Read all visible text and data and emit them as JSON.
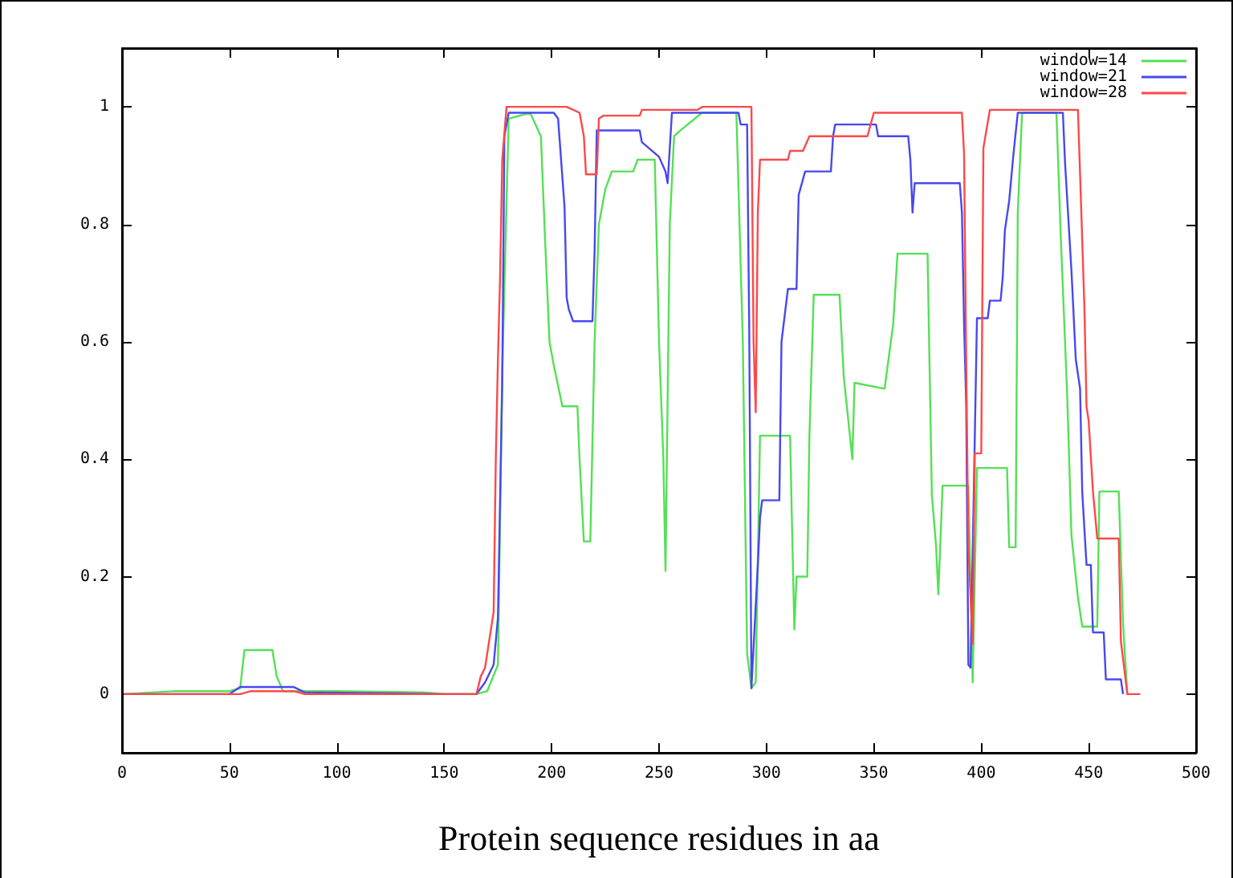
{
  "chart_data": {
    "type": "line",
    "xlabel": "Protein sequence residues in aa",
    "xlim": [
      0,
      500
    ],
    "xticks": [
      0,
      50,
      100,
      150,
      200,
      250,
      300,
      350,
      400,
      450,
      500
    ],
    "ylim": [
      -0.1,
      1.1
    ],
    "yticks": [
      0,
      0.2,
      0.4,
      0.6,
      0.8,
      1
    ],
    "grid": false,
    "legend": "top right",
    "marker": "none",
    "line_style": "solid",
    "series": [
      {
        "name": "window=14",
        "color": "#55e055",
        "x": [
          1,
          25,
          50,
          55,
          57,
          70,
          72,
          75,
          100,
          140,
          150,
          165,
          170,
          175,
          177,
          180,
          190,
          195,
          197,
          199,
          201,
          205,
          212,
          213,
          215,
          218,
          220,
          222,
          225,
          228,
          238,
          240,
          248,
          250,
          252,
          253,
          255,
          257,
          260,
          270,
          286,
          289,
          291,
          293,
          295,
          297,
          311,
          312,
          313,
          314,
          319,
          320,
          322,
          334,
          336,
          340,
          341,
          355,
          359,
          361,
          375,
          377,
          379,
          380,
          382,
          394,
          396,
          398,
          412,
          413,
          416,
          417,
          419,
          435,
          437,
          440,
          442,
          445,
          447,
          454,
          455,
          464,
          466,
          468
        ],
        "values": [
          0,
          0.005,
          0.005,
          0.01,
          0.075,
          0.075,
          0.03,
          0.005,
          0.005,
          0.003,
          0,
          0,
          0.005,
          0.05,
          0.55,
          0.98,
          0.99,
          0.95,
          0.77,
          0.6,
          0.56,
          0.49,
          0.49,
          0.4,
          0.26,
          0.26,
          0.6,
          0.8,
          0.86,
          0.89,
          0.89,
          0.91,
          0.91,
          0.6,
          0.4,
          0.21,
          0.8,
          0.95,
          0.96,
          0.99,
          0.99,
          0.6,
          0.07,
          0.01,
          0.02,
          0.44,
          0.44,
          0.27,
          0.11,
          0.2,
          0.2,
          0.44,
          0.68,
          0.68,
          0.54,
          0.4,
          0.53,
          0.52,
          0.63,
          0.75,
          0.75,
          0.34,
          0.25,
          0.17,
          0.355,
          0.355,
          0.02,
          0.385,
          0.385,
          0.25,
          0.25,
          0.82,
          0.99,
          0.99,
          0.78,
          0.51,
          0.27,
          0.165,
          0.115,
          0.115,
          0.345,
          0.345,
          0.12,
          0
        ]
      },
      {
        "name": "window=21",
        "color": "#4848ee",
        "x": [
          1,
          50,
          55,
          80,
          85,
          150,
          165,
          169,
          173,
          175,
          177,
          178,
          180,
          201,
          203,
          206,
          207,
          208,
          210,
          219,
          220,
          221,
          241,
          242,
          250,
          253,
          254,
          256,
          287,
          288,
          291,
          292,
          293,
          296,
          297,
          298,
          306,
          307,
          310,
          314,
          315,
          318,
          330,
          331,
          332,
          351,
          352,
          366,
          367,
          368,
          369,
          390,
          391,
          392,
          393,
          394,
          395,
          397,
          398,
          403,
          404,
          409,
          410,
          411,
          413,
          415,
          417,
          438,
          439,
          442,
          444,
          446,
          447,
          449,
          451,
          452,
          457,
          458,
          465,
          466
        ],
        "values": [
          0,
          0,
          0.012,
          0.012,
          0.003,
          0,
          0,
          0.02,
          0.05,
          0.13,
          0.53,
          0.95,
          0.99,
          0.99,
          0.98,
          0.83,
          0.675,
          0.655,
          0.635,
          0.635,
          0.755,
          0.96,
          0.96,
          0.94,
          0.915,
          0.89,
          0.87,
          0.99,
          0.99,
          0.97,
          0.97,
          0.615,
          0.01,
          0.22,
          0.3,
          0.33,
          0.33,
          0.6,
          0.69,
          0.69,
          0.85,
          0.89,
          0.89,
          0.95,
          0.97,
          0.97,
          0.95,
          0.95,
          0.91,
          0.82,
          0.87,
          0.87,
          0.82,
          0.63,
          0.49,
          0.05,
          0.045,
          0.44,
          0.64,
          0.64,
          0.67,
          0.67,
          0.71,
          0.79,
          0.84,
          0.92,
          0.99,
          0.99,
          0.905,
          0.72,
          0.57,
          0.52,
          0.345,
          0.22,
          0.22,
          0.105,
          0.105,
          0.025,
          0.025,
          0
        ]
      },
      {
        "name": "window=28",
        "color": "#ff4848",
        "x": [
          1,
          55,
          60,
          80,
          85,
          165,
          167,
          169,
          173,
          174,
          175,
          176,
          177,
          179,
          207,
          213,
          215,
          216,
          221,
          222,
          224,
          241,
          242,
          268,
          270,
          293,
          294,
          295,
          296,
          297,
          310,
          311,
          317,
          320,
          347,
          350,
          391,
          392,
          393,
          394,
          396,
          397,
          400,
          401,
          404,
          445,
          446,
          448,
          449,
          450,
          452,
          454,
          464,
          465,
          468,
          474
        ],
        "values": [
          0,
          0,
          0.005,
          0.005,
          0,
          0,
          0.03,
          0.045,
          0.14,
          0.4,
          0.57,
          0.71,
          0.91,
          1,
          1,
          0.99,
          0.95,
          0.885,
          0.885,
          0.98,
          0.985,
          0.985,
          0.995,
          0.995,
          1,
          1,
          0.6,
          0.48,
          0.82,
          0.91,
          0.91,
          0.925,
          0.925,
          0.95,
          0.95,
          0.99,
          0.99,
          0.92,
          0.56,
          0.25,
          0.085,
          0.41,
          0.41,
          0.93,
          0.995,
          0.995,
          0.885,
          0.66,
          0.49,
          0.465,
          0.345,
          0.265,
          0.265,
          0.09,
          0,
          0
        ]
      }
    ]
  }
}
